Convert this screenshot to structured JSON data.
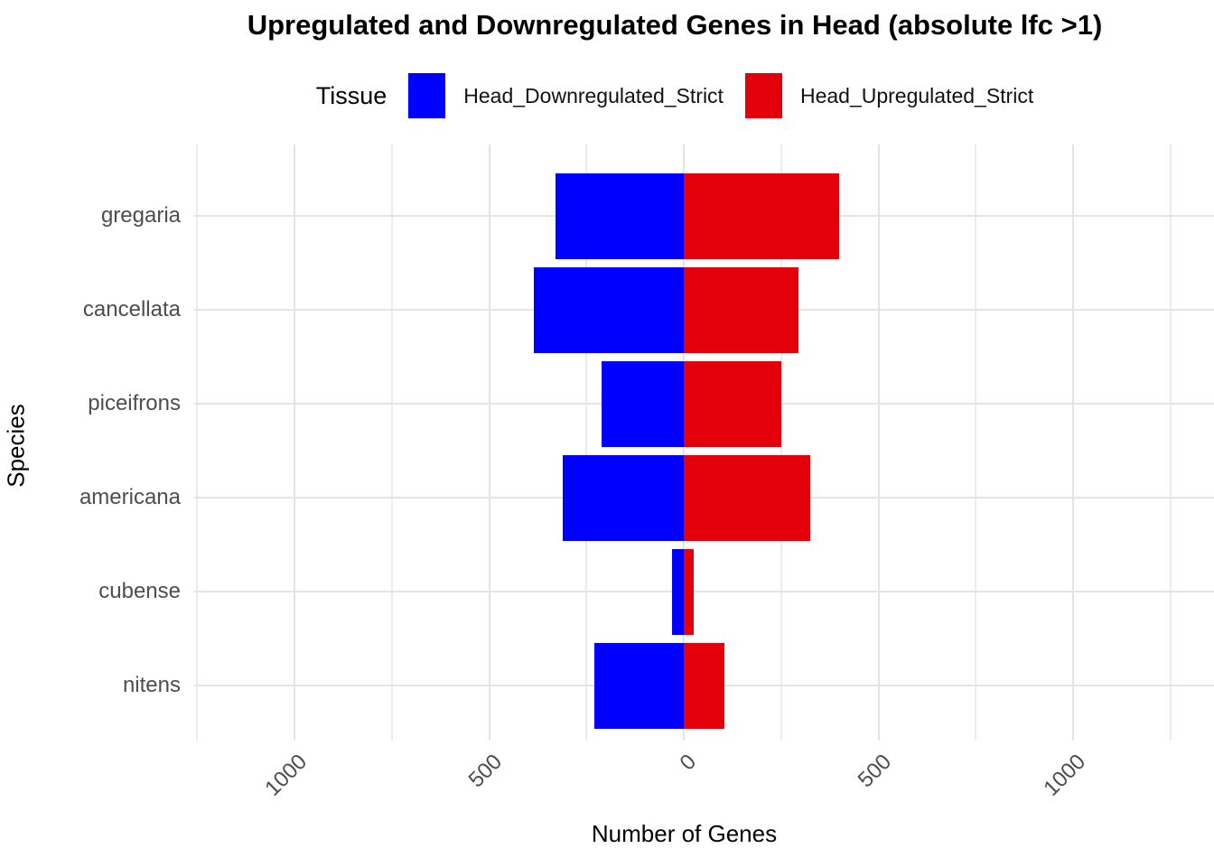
{
  "title": "Upregulated and Downregulated Genes in Head (absolute lfc >1)",
  "legend": {
    "title": "Tissue",
    "items": [
      {
        "label": "Head_Downregulated_Strict",
        "color": "#0000FF"
      },
      {
        "label": "Head_Upregulated_Strict",
        "color": "#E3000B"
      }
    ]
  },
  "axes": {
    "x_title": "Number of Genes",
    "y_title": "Species",
    "x_major_ticks": [
      -1000,
      -500,
      0,
      500,
      1000
    ],
    "x_tick_labels": [
      "1000",
      "500",
      "0",
      "500",
      "1000"
    ],
    "x_minor_ticks": [
      -1250,
      -750,
      -250,
      250,
      750,
      1250
    ],
    "x_domain": [
      -1260,
      1360
    ]
  },
  "colors": {
    "down": "#0000FF",
    "up": "#E3000B",
    "grid_major": "#E4E4E4",
    "grid_minor": "#ECECEC",
    "tick_text": "#4d4d4d"
  },
  "chart_data": {
    "type": "bar",
    "orientation": "horizontal-diverging",
    "title": "Upregulated and Downregulated Genes in Head (absolute lfc >1)",
    "xlabel": "Number of Genes",
    "ylabel": "Species",
    "xlim": [
      -1260,
      1360
    ],
    "grid": true,
    "legend_position": "top",
    "categories": [
      "gregaria",
      "cancellata",
      "piceifrons",
      "americana",
      "cubense",
      "nitens"
    ],
    "series": [
      {
        "name": "Head_Downregulated_Strict",
        "color": "#0000FF",
        "direction": -1,
        "values": [
          330,
          385,
          210,
          310,
          30,
          230
        ]
      },
      {
        "name": "Head_Upregulated_Strict",
        "color": "#E3000B",
        "direction": 1,
        "values": [
          400,
          295,
          250,
          325,
          25,
          105
        ]
      }
    ]
  }
}
